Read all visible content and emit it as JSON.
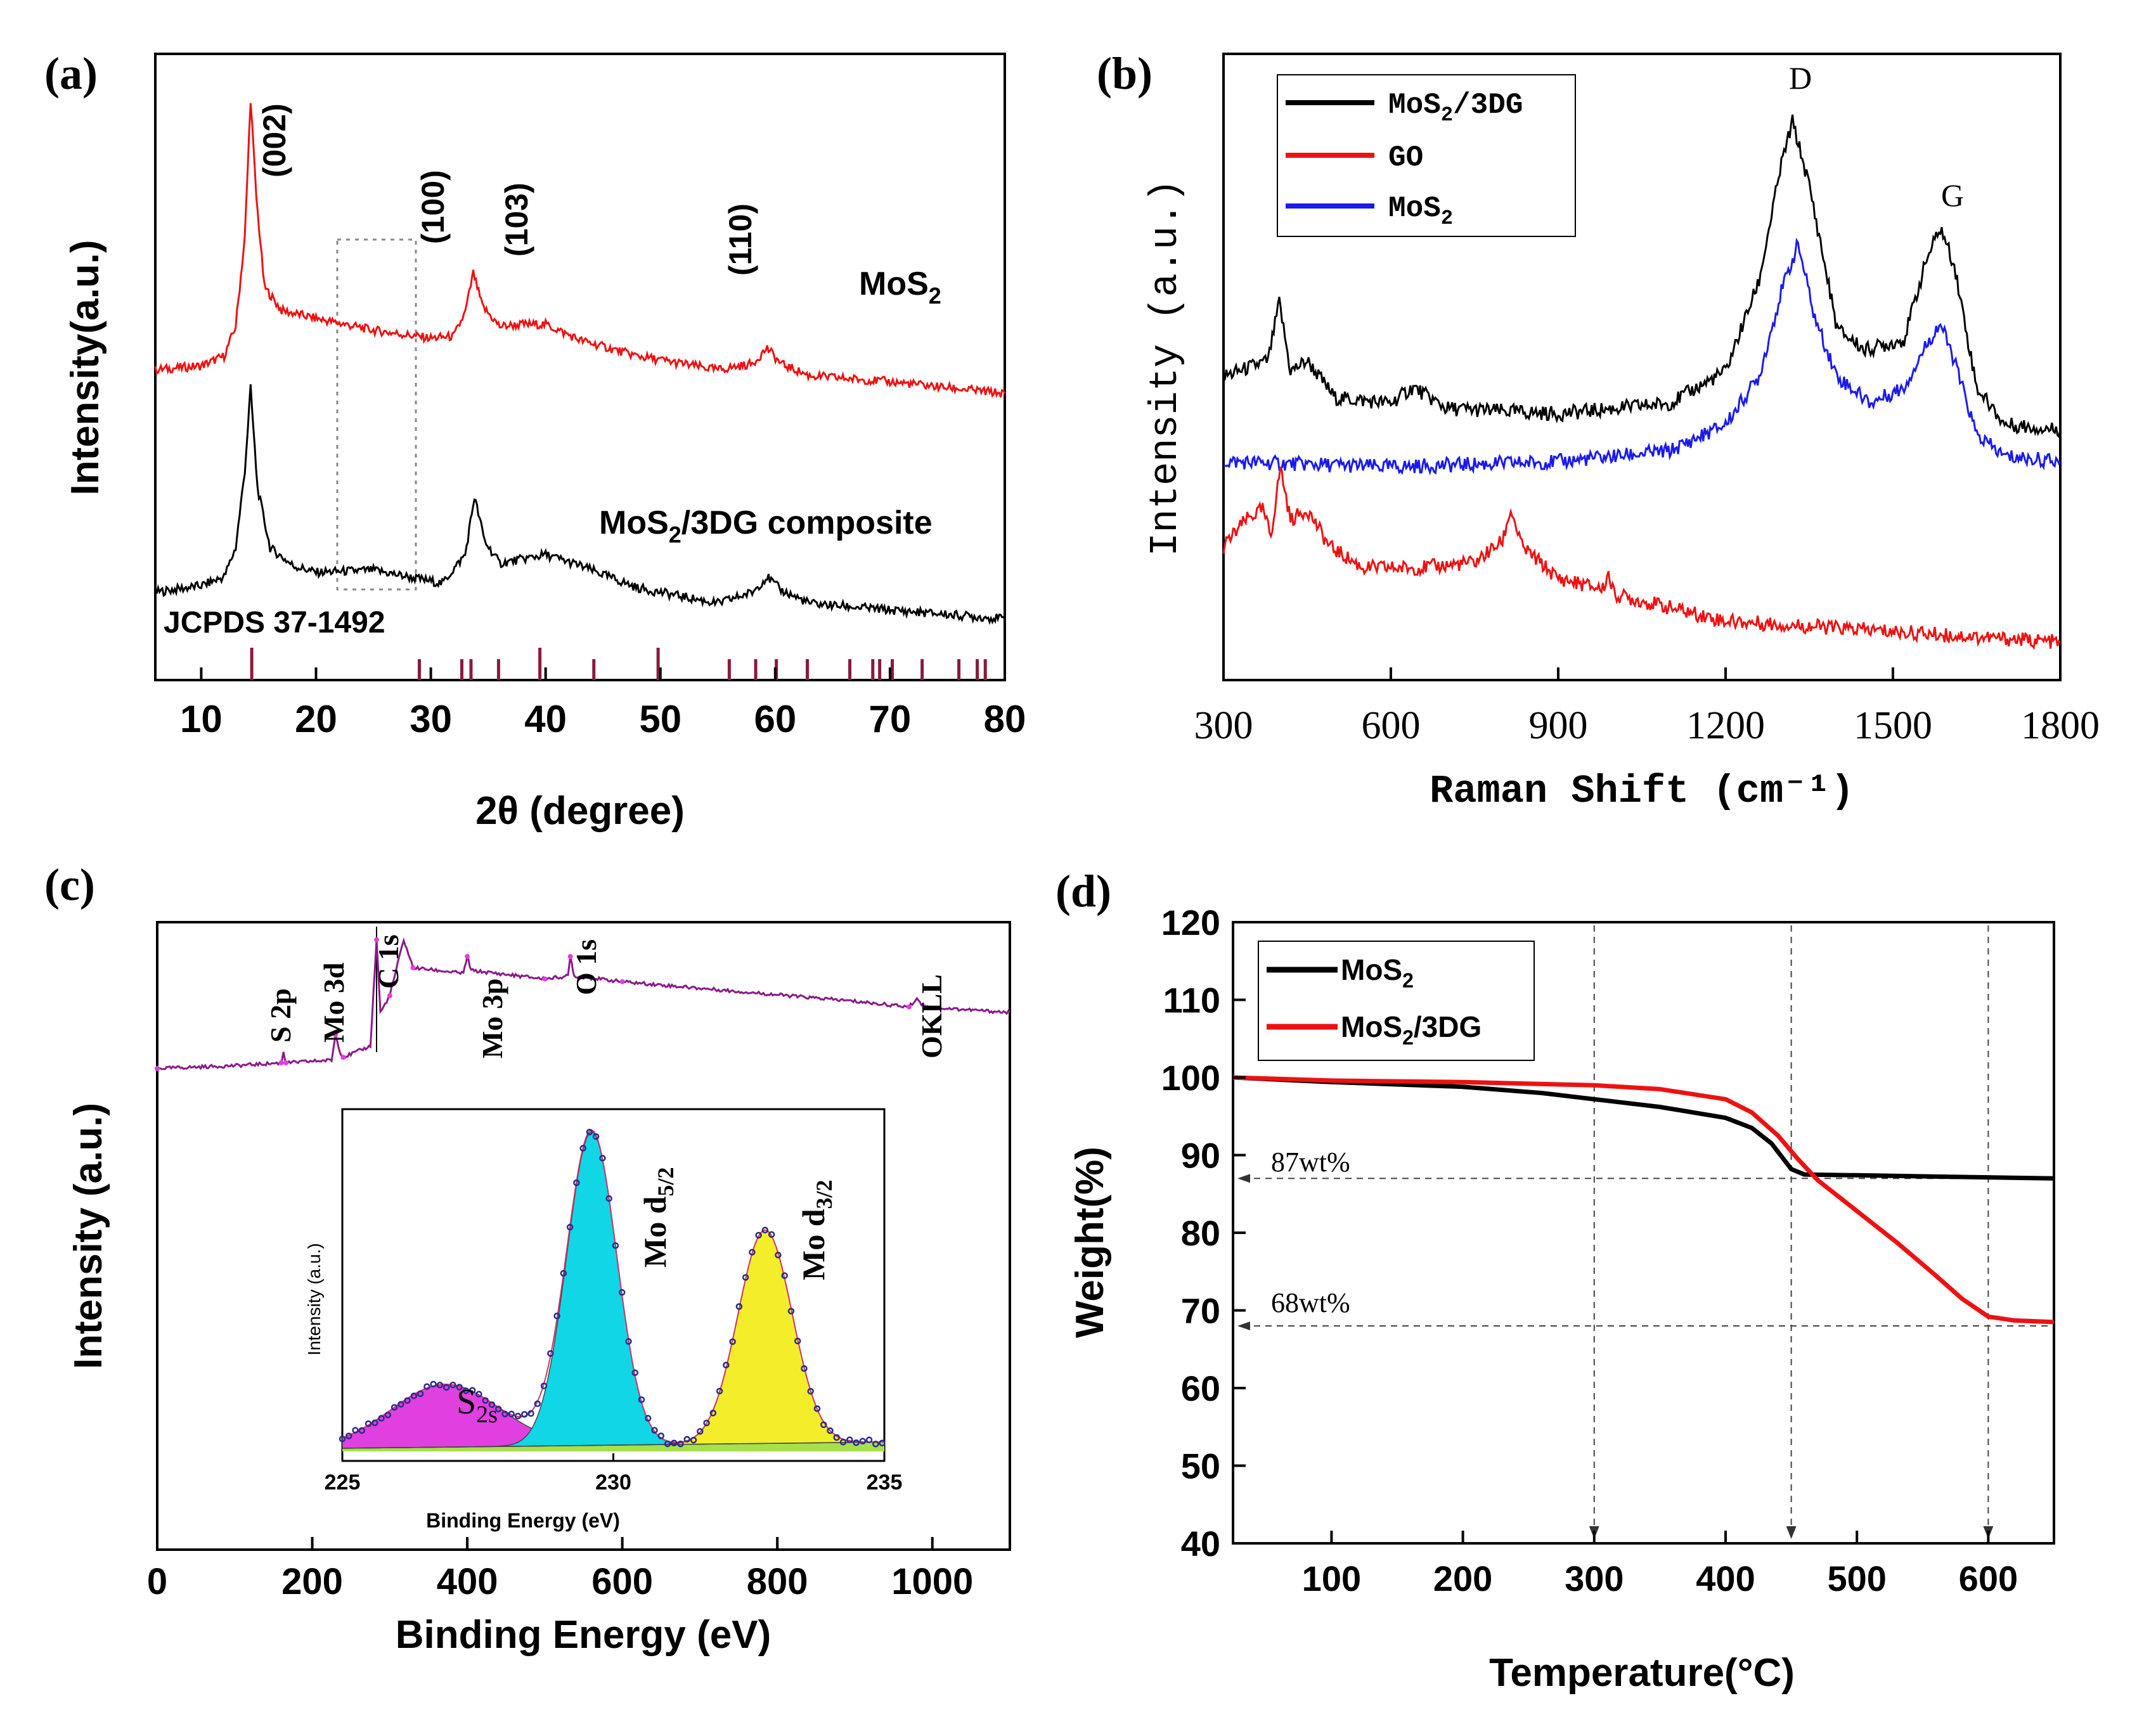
{
  "figure": {
    "colors": {
      "black": "#000000",
      "red": "#ee1111",
      "blue": "#1a1aee",
      "purple": "#8a1a8a",
      "magenta": "#e040e0",
      "cyan": "#11d6e6",
      "yellow": "#f4ee2a",
      "green": "#a6e04a",
      "navy": "#2a2a8a",
      "maroon": "#8a1a3a"
    }
  },
  "chart_data": [
    {
      "panel": "a",
      "type": "line",
      "panel_label": "(a)",
      "xlabel": "2θ (degree)",
      "ylabel": "Intensity(a.u.)",
      "xlim": [
        6,
        80
      ],
      "xticks": [
        "10",
        "20",
        "30",
        "40",
        "50",
        "60",
        "70",
        "80"
      ],
      "curve_labels": {
        "top": "MoS",
        "top_sub": "2",
        "bottom_pre": "MoS",
        "bottom_sub": "2",
        "bottom_post": "/3DG composite"
      },
      "peak_labels": [
        "(002)",
        "(100)",
        "(103)",
        "(110)"
      ],
      "reference": "JCPDS 37-1492",
      "reference_lines": [
        14.4,
        29.0,
        32.7,
        33.5,
        35.9,
        39.5,
        44.2,
        49.8,
        56.0,
        58.3,
        60.1,
        62.8,
        66.5,
        68.5,
        69.1,
        70.2,
        72.8,
        76.0,
        77.6,
        78.3
      ],
      "highlight_box_x": [
        22,
        29
      ],
      "series": [
        {
          "name": "MoS2",
          "color": "#ee1111",
          "points": [
            [
              6,
              0.63
            ],
            [
              10,
              0.65
            ],
            [
              12,
              0.7
            ],
            [
              13,
              0.85
            ],
            [
              13.8,
              1.3
            ],
            [
              14.3,
              2.0
            ],
            [
              14.8,
              1.5
            ],
            [
              15.5,
              1.05
            ],
            [
              17,
              0.93
            ],
            [
              20,
              0.89
            ],
            [
              25,
              0.83
            ],
            [
              30,
              0.79
            ],
            [
              32,
              0.8
            ],
            [
              33,
              0.92
            ],
            [
              33.7,
              1.12
            ],
            [
              34.5,
              0.95
            ],
            [
              36,
              0.85
            ],
            [
              38,
              0.86
            ],
            [
              40,
              0.86
            ],
            [
              43,
              0.78
            ],
            [
              48,
              0.7
            ],
            [
              55,
              0.63
            ],
            [
              58,
              0.66
            ],
            [
              59.3,
              0.74
            ],
            [
              60.5,
              0.66
            ],
            [
              63,
              0.6
            ],
            [
              70,
              0.57
            ],
            [
              80,
              0.51
            ]
          ]
        },
        {
          "name": "MoS2/3DG composite",
          "color": "#000000",
          "points": [
            [
              6,
              0.13
            ],
            [
              10,
              0.16
            ],
            [
              12,
              0.2
            ],
            [
              13,
              0.33
            ],
            [
              13.8,
              0.68
            ],
            [
              14.3,
              1.05
            ],
            [
              14.9,
              0.6
            ],
            [
              16,
              0.33
            ],
            [
              18,
              0.25
            ],
            [
              20,
              0.22
            ],
            [
              25,
              0.23
            ],
            [
              28,
              0.2
            ],
            [
              31,
              0.17
            ],
            [
              33,
              0.3
            ],
            [
              33.8,
              0.56
            ],
            [
              34.7,
              0.36
            ],
            [
              36,
              0.26
            ],
            [
              38,
              0.28
            ],
            [
              40,
              0.3
            ],
            [
              43,
              0.25
            ],
            [
              48,
              0.15
            ],
            [
              55,
              0.08
            ],
            [
              58,
              0.13
            ],
            [
              59.3,
              0.2
            ],
            [
              60.5,
              0.14
            ],
            [
              63,
              0.08
            ],
            [
              70,
              0.05
            ],
            [
              80,
              0.01
            ]
          ]
        }
      ]
    },
    {
      "panel": "b",
      "type": "line",
      "panel_label": "(b)",
      "xlabel": "Raman Shift (cm⁻¹)",
      "ylabel": "Intensity (a.u.)",
      "xlim": [
        300,
        1800
      ],
      "xticks": [
        "300",
        "600",
        "900",
        "1200",
        "1500",
        "1800"
      ],
      "peak_labels": [
        "D",
        "G"
      ],
      "legend": [
        {
          "label": "MoS",
          "sub": "2",
          "post": "/3DG",
          "color": "#000000"
        },
        {
          "label": "GO",
          "sub": "",
          "post": "",
          "color": "#ee1111"
        },
        {
          "label": "MoS",
          "sub": "2",
          "post": "",
          "color": "#1a1aee"
        }
      ],
      "series": [
        {
          "name": "MoS2/3DG",
          "color": "#000000",
          "points": [
            [
              300,
              0.52
            ],
            [
              380,
              0.55
            ],
            [
              400,
              0.66
            ],
            [
              420,
              0.53
            ],
            [
              450,
              0.55
            ],
            [
              500,
              0.48
            ],
            [
              600,
              0.47
            ],
            [
              640,
              0.5
            ],
            [
              700,
              0.46
            ],
            [
              900,
              0.45
            ],
            [
              1100,
              0.47
            ],
            [
              1200,
              0.53
            ],
            [
              1260,
              0.7
            ],
            [
              1300,
              0.92
            ],
            [
              1320,
              1.0
            ],
            [
              1350,
              0.88
            ],
            [
              1400,
              0.61
            ],
            [
              1450,
              0.57
            ],
            [
              1520,
              0.59
            ],
            [
              1560,
              0.74
            ],
            [
              1585,
              0.8
            ],
            [
              1610,
              0.73
            ],
            [
              1650,
              0.5
            ],
            [
              1700,
              0.43
            ],
            [
              1800,
              0.42
            ]
          ]
        },
        {
          "name": "MoS2",
          "color": "#1a1aee",
          "points": [
            [
              300,
              0.36
            ],
            [
              600,
              0.35
            ],
            [
              900,
              0.36
            ],
            [
              1100,
              0.38
            ],
            [
              1200,
              0.43
            ],
            [
              1260,
              0.52
            ],
            [
              1300,
              0.68
            ],
            [
              1330,
              0.77
            ],
            [
              1360,
              0.63
            ],
            [
              1400,
              0.52
            ],
            [
              1460,
              0.47
            ],
            [
              1520,
              0.5
            ],
            [
              1560,
              0.58
            ],
            [
              1585,
              0.62
            ],
            [
              1610,
              0.55
            ],
            [
              1650,
              0.41
            ],
            [
              1700,
              0.37
            ],
            [
              1800,
              0.36
            ]
          ]
        },
        {
          "name": "GO",
          "color": "#ee1111",
          "points": [
            [
              300,
              0.2
            ],
            [
              340,
              0.25
            ],
            [
              370,
              0.27
            ],
            [
              385,
              0.22
            ],
            [
              402,
              0.35
            ],
            [
              420,
              0.25
            ],
            [
              450,
              0.27
            ],
            [
              490,
              0.2
            ],
            [
              550,
              0.16
            ],
            [
              650,
              0.16
            ],
            [
              750,
              0.17
            ],
            [
              800,
              0.21
            ],
            [
              815,
              0.27
            ],
            [
              835,
              0.2
            ],
            [
              900,
              0.14
            ],
            [
              980,
              0.12
            ],
            [
              990,
              0.15
            ],
            [
              1000,
              0.11
            ],
            [
              1200,
              0.06
            ],
            [
              1500,
              0.04
            ],
            [
              1800,
              0.02
            ]
          ]
        }
      ]
    },
    {
      "panel": "c",
      "type": "line",
      "panel_label": "(c)",
      "xlabel": "Binding Energy (eV)",
      "ylabel": "Intensity (a.u.)",
      "xlim": [
        0,
        1100
      ],
      "xticks": [
        "0",
        "200",
        "400",
        "600",
        "800",
        "1000"
      ],
      "peak_labels": [
        "S 2p",
        "Mo 3d",
        "C 1s",
        "Mo 3p",
        "O 1s",
        "OKLL"
      ],
      "series": [
        {
          "name": "survey",
          "color": "#8a1a8a",
          "points": [
            [
              0,
              0.1
            ],
            [
              100,
              0.11
            ],
            [
              160,
              0.12
            ],
            [
              163,
              0.16
            ],
            [
              166,
              0.12
            ],
            [
              225,
              0.13
            ],
            [
              230,
              0.22
            ],
            [
              236,
              0.16
            ],
            [
              240,
              0.14
            ],
            [
              275,
              0.18
            ],
            [
              283,
              0.56
            ],
            [
              288,
              0.3
            ],
            [
              300,
              0.36
            ],
            [
              318,
              0.56
            ],
            [
              330,
              0.46
            ],
            [
              395,
              0.44
            ],
            [
              400,
              0.5
            ],
            [
              405,
              0.45
            ],
            [
              500,
              0.42
            ],
            [
              530,
              0.43
            ],
            [
              533,
              0.5
            ],
            [
              538,
              0.43
            ],
            [
              600,
              0.41
            ],
            [
              900,
              0.34
            ],
            [
              970,
              0.32
            ],
            [
              980,
              0.35
            ],
            [
              990,
              0.32
            ],
            [
              1100,
              0.3
            ]
          ]
        }
      ],
      "inset": {
        "xlabel": "Binding Energy (eV)",
        "ylabel": "Intensity (a.u.)",
        "xlim": [
          225,
          235
        ],
        "xticks": [
          "225",
          "230",
          "235"
        ],
        "peaks": [
          {
            "label": "S",
            "sub": "2s",
            "center": 226.9,
            "height": 0.2,
            "sigma": 1.0,
            "color": "#e040e0"
          },
          {
            "label": "Mo d",
            "sub": "5/2",
            "center": 229.6,
            "height": 1.0,
            "sigma": 0.46,
            "color": "#11d6e6"
          },
          {
            "label": "Mo d",
            "sub": "3/2",
            "center": 232.8,
            "height": 0.68,
            "sigma": 0.5,
            "color": "#f4ee2a"
          }
        ]
      }
    },
    {
      "panel": "d",
      "type": "line",
      "panel_label": "(d)",
      "xlabel": "Temperature(°C)",
      "ylabel": "Weight(%)",
      "xlim": [
        25,
        650
      ],
      "ylim": [
        40,
        120
      ],
      "xticks": [
        "100",
        "200",
        "300",
        "400",
        "500",
        "600"
      ],
      "yticks": [
        "40",
        "50",
        "60",
        "70",
        "80",
        "90",
        "100",
        "110",
        "120"
      ],
      "legend": [
        {
          "label": "MoS",
          "sub": "2",
          "post": "",
          "color": "#000000"
        },
        {
          "label": "MoS",
          "sub": "2",
          "post": "/3DG",
          "color": "#ee1111"
        }
      ],
      "annotations": [
        "87wt%",
        "68wt%"
      ],
      "guide_temperatures": [
        300,
        450,
        600
      ],
      "guide_weights": [
        87,
        68
      ],
      "series": [
        {
          "name": "MoS2",
          "color": "#000000",
          "points": [
            [
              25,
              100
            ],
            [
              100,
              99.4
            ],
            [
              200,
              98.8
            ],
            [
              260,
              98
            ],
            [
              300,
              97.2
            ],
            [
              350,
              96.2
            ],
            [
              400,
              94.8
            ],
            [
              420,
              93.5
            ],
            [
              435,
              91.5
            ],
            [
              450,
              88.2
            ],
            [
              460,
              87.5
            ],
            [
              500,
              87.4
            ],
            [
              650,
              87
            ]
          ]
        },
        {
          "name": "MoS2/3DG",
          "color": "#ee1111",
          "points": [
            [
              25,
              100
            ],
            [
              100,
              99.6
            ],
            [
              200,
              99.4
            ],
            [
              300,
              99
            ],
            [
              350,
              98.5
            ],
            [
              400,
              97.2
            ],
            [
              420,
              95.5
            ],
            [
              440,
              92.5
            ],
            [
              455,
              89.5
            ],
            [
              470,
              86.8
            ],
            [
              500,
              82.8
            ],
            [
              530,
              78.8
            ],
            [
              560,
              74.5
            ],
            [
              580,
              71.5
            ],
            [
              600,
              69.2
            ],
            [
              620,
              68.7
            ],
            [
              650,
              68.5
            ]
          ]
        }
      ]
    }
  ]
}
